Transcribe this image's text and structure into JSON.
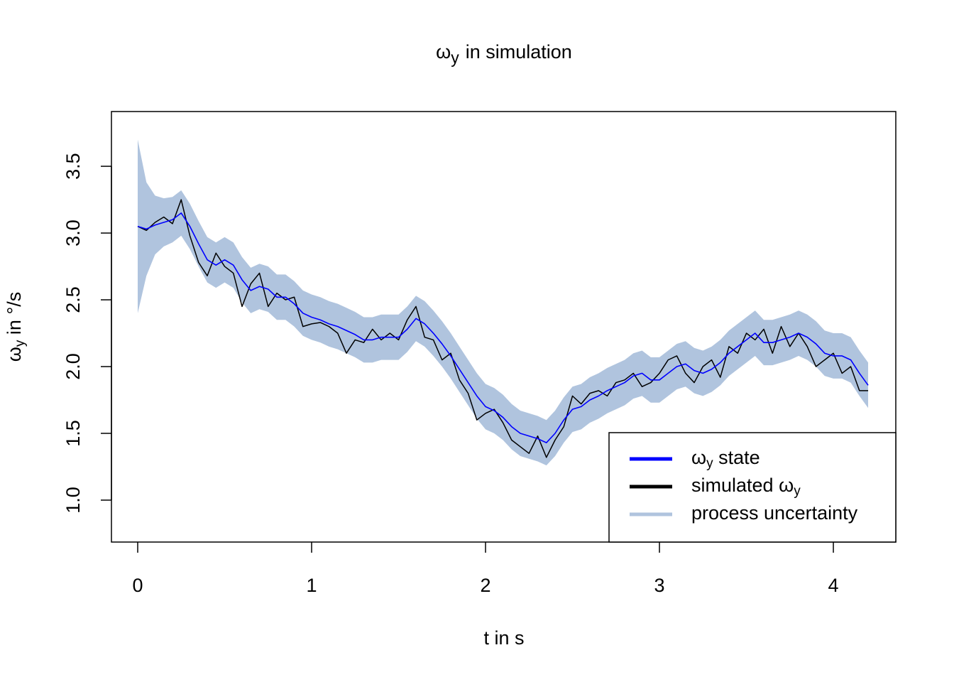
{
  "chart_data": {
    "type": "line",
    "title": {
      "parts": [
        "ω",
        "y",
        "in simulation"
      ],
      "sub": 1
    },
    "x_label": "t in s",
    "y_label": {
      "parts": [
        "ω",
        "y",
        "in °/s"
      ],
      "sub": 1
    },
    "x": [
      0,
      0.05,
      0.1,
      0.15,
      0.2,
      0.25,
      0.3,
      0.35,
      0.4,
      0.45,
      0.5,
      0.55,
      0.6,
      0.65,
      0.7,
      0.75,
      0.8,
      0.85,
      0.9,
      0.95,
      1,
      1.05,
      1.1,
      1.15,
      1.2,
      1.25,
      1.3,
      1.35,
      1.4,
      1.45,
      1.5,
      1.55,
      1.6,
      1.65,
      1.7,
      1.75,
      1.8,
      1.85,
      1.9,
      1.95,
      2,
      2.05,
      2.1,
      2.15,
      2.2,
      2.25,
      2.3,
      2.35,
      2.4,
      2.45,
      2.5,
      2.55,
      2.6,
      2.65,
      2.7,
      2.75,
      2.8,
      2.85,
      2.9,
      2.95,
      3,
      3.05,
      3.1,
      3.15,
      3.2,
      3.25,
      3.3,
      3.35,
      3.4,
      3.45,
      3.5,
      3.55,
      3.6,
      3.65,
      3.7,
      3.75,
      3.8,
      3.85,
      3.9,
      3.95,
      4,
      4.05,
      4.1,
      4.15,
      4.2
    ],
    "band": {
      "name": "process uncertainty",
      "color": "#b0c4de",
      "upper": [
        3.7,
        3.38,
        3.28,
        3.26,
        3.27,
        3.32,
        3.22,
        3.09,
        2.97,
        2.93,
        2.97,
        2.93,
        2.82,
        2.74,
        2.77,
        2.75,
        2.69,
        2.69,
        2.64,
        2.57,
        2.54,
        2.52,
        2.49,
        2.47,
        2.44,
        2.41,
        2.37,
        2.37,
        2.39,
        2.39,
        2.39,
        2.45,
        2.53,
        2.49,
        2.42,
        2.34,
        2.25,
        2.15,
        2.05,
        1.95,
        1.87,
        1.84,
        1.79,
        1.72,
        1.67,
        1.65,
        1.63,
        1.6,
        1.67,
        1.77,
        1.85,
        1.87,
        1.92,
        1.95,
        1.99,
        2.02,
        2.05,
        2.1,
        2.12,
        2.07,
        2.07,
        2.12,
        2.17,
        2.19,
        2.14,
        2.12,
        2.15,
        2.2,
        2.27,
        2.32,
        2.37,
        2.42,
        2.35,
        2.35,
        2.37,
        2.39,
        2.42,
        2.39,
        2.34,
        2.27,
        2.25,
        2.25,
        2.22,
        2.12,
        2.03
      ],
      "lower": [
        2.4,
        2.68,
        2.84,
        2.9,
        2.93,
        2.98,
        2.88,
        2.75,
        2.63,
        2.59,
        2.63,
        2.59,
        2.48,
        2.4,
        2.43,
        2.41,
        2.35,
        2.35,
        2.3,
        2.23,
        2.2,
        2.18,
        2.15,
        2.13,
        2.1,
        2.07,
        2.03,
        2.03,
        2.05,
        2.05,
        2.05,
        2.11,
        2.19,
        2.15,
        2.08,
        2.0,
        1.91,
        1.81,
        1.71,
        1.61,
        1.53,
        1.5,
        1.45,
        1.38,
        1.33,
        1.31,
        1.29,
        1.26,
        1.33,
        1.43,
        1.51,
        1.53,
        1.58,
        1.61,
        1.65,
        1.68,
        1.71,
        1.76,
        1.78,
        1.73,
        1.73,
        1.78,
        1.83,
        1.85,
        1.8,
        1.78,
        1.81,
        1.86,
        1.93,
        1.98,
        2.03,
        2.08,
        2.01,
        2.01,
        2.03,
        2.05,
        2.08,
        2.05,
        2.0,
        1.93,
        1.91,
        1.91,
        1.88,
        1.78,
        1.69
      ]
    },
    "series": [
      {
        "name": {
          "parts": [
            "ω",
            "y",
            "state"
          ],
          "sub": 1
        },
        "color": "#0000ff",
        "values": [
          3.05,
          3.03,
          3.06,
          3.08,
          3.1,
          3.15,
          3.05,
          2.92,
          2.8,
          2.76,
          2.8,
          2.76,
          2.65,
          2.57,
          2.6,
          2.58,
          2.52,
          2.52,
          2.47,
          2.4,
          2.37,
          2.35,
          2.32,
          2.3,
          2.27,
          2.24,
          2.2,
          2.2,
          2.22,
          2.22,
          2.22,
          2.28,
          2.36,
          2.32,
          2.25,
          2.17,
          2.08,
          1.98,
          1.88,
          1.78,
          1.7,
          1.67,
          1.62,
          1.55,
          1.5,
          1.48,
          1.46,
          1.43,
          1.5,
          1.6,
          1.68,
          1.7,
          1.75,
          1.78,
          1.82,
          1.85,
          1.88,
          1.93,
          1.95,
          1.9,
          1.9,
          1.95,
          2.0,
          2.02,
          1.97,
          1.95,
          1.98,
          2.03,
          2.1,
          2.15,
          2.2,
          2.25,
          2.18,
          2.18,
          2.2,
          2.22,
          2.25,
          2.22,
          2.17,
          2.1,
          2.08,
          2.08,
          2.05,
          1.95,
          1.86
        ]
      },
      {
        "name": {
          "parts": [
            "simulated",
            "ω",
            "y"
          ],
          "sub": 2
        },
        "color": "#000000",
        "values": [
          3.05,
          3.02,
          3.08,
          3.12,
          3.07,
          3.25,
          2.98,
          2.78,
          2.68,
          2.85,
          2.75,
          2.7,
          2.45,
          2.62,
          2.7,
          2.45,
          2.55,
          2.5,
          2.52,
          2.3,
          2.32,
          2.33,
          2.3,
          2.25,
          2.1,
          2.2,
          2.18,
          2.28,
          2.2,
          2.25,
          2.2,
          2.35,
          2.45,
          2.22,
          2.2,
          2.05,
          2.1,
          1.9,
          1.8,
          1.6,
          1.65,
          1.68,
          1.58,
          1.45,
          1.4,
          1.35,
          1.48,
          1.32,
          1.45,
          1.55,
          1.78,
          1.72,
          1.8,
          1.82,
          1.78,
          1.88,
          1.9,
          1.95,
          1.85,
          1.88,
          1.95,
          2.05,
          2.08,
          1.95,
          1.88,
          2.0,
          2.05,
          1.92,
          2.15,
          2.1,
          2.25,
          2.2,
          2.28,
          2.1,
          2.3,
          2.15,
          2.25,
          2.15,
          2.0,
          2.05,
          2.1,
          1.95,
          2.0,
          1.82,
          1.82
        ]
      }
    ],
    "xlim": [
      -0.151,
      4.359
    ],
    "ylim": [
      0.686,
      3.91
    ],
    "xticks": [
      0,
      1,
      2,
      3,
      4
    ],
    "yticks": [
      {
        "value": 1,
        "label": "1.0"
      },
      {
        "value": 1.5,
        "label": "1.5"
      },
      {
        "value": 2,
        "label": "2.0"
      },
      {
        "value": 2.5,
        "label": "2.5"
      },
      {
        "value": 3,
        "label": "3.0"
      },
      {
        "value": 3.5,
        "label": "3.5"
      }
    ],
    "legend": "bottomright"
  }
}
